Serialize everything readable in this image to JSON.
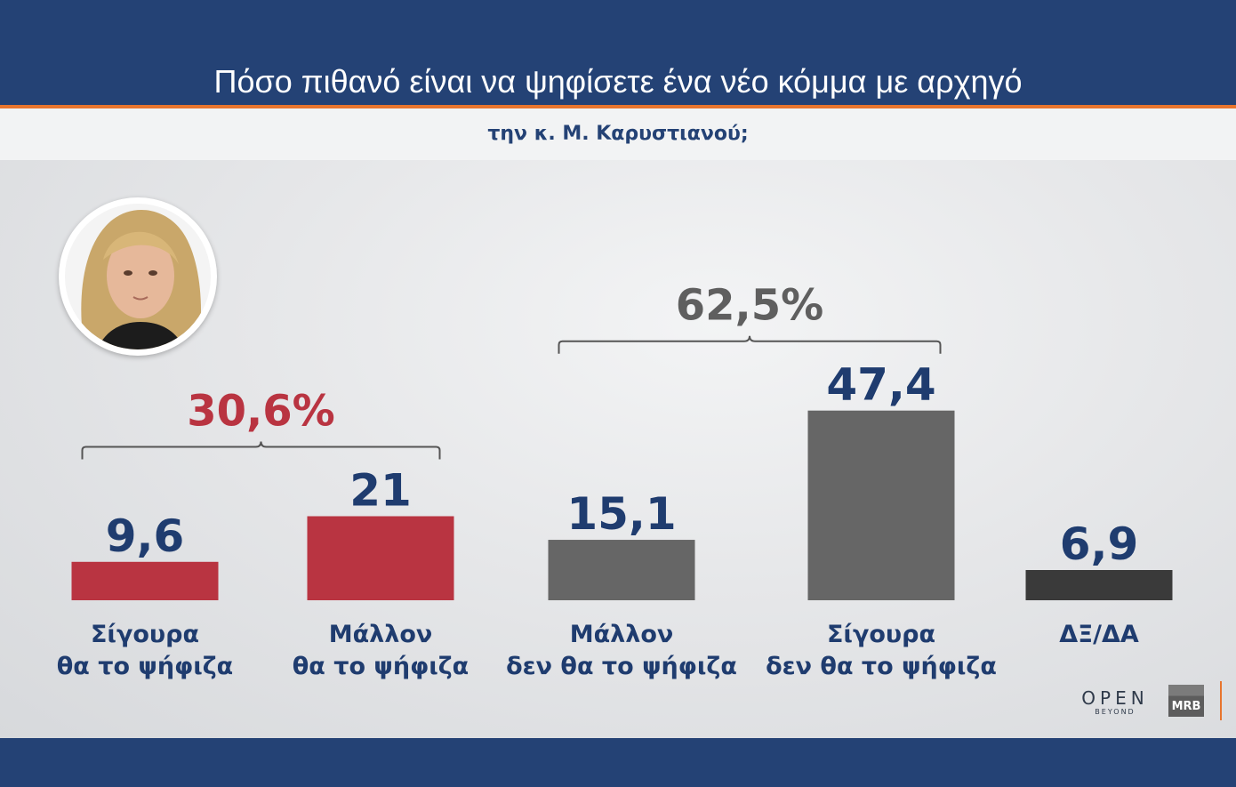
{
  "header": {
    "title": "Πόσο πιθανό είναι να ψηφίσετε ένα νέο κόμμα με αρχηγό",
    "subtitle": "την κ. Μ. Καρυστιανού;"
  },
  "colors": {
    "header_blue": "#244275",
    "accent_orange": "#e8752e",
    "red": "#b93441",
    "gray": "#666666",
    "dark": "#3a3a3a",
    "value_blue": "#1f3c6f",
    "total_gray": "#5f5f5f"
  },
  "chart_data": {
    "type": "bar",
    "title": "Πόσο πιθανό είναι να ψηφίσετε ένα νέο κόμμα με αρχηγό την κ. Μ. Καρυστιανού;",
    "categories": [
      [
        "Σίγουρα",
        "θα το ψήφιζα"
      ],
      [
        "Μάλλον",
        "θα το ψήφιζα"
      ],
      [
        "Μάλλον",
        "δεν θα το ψήφιζα"
      ],
      [
        "Σίγουρα",
        "δεν θα το ψήφιζα"
      ],
      [
        "ΔΞ/ΔΑ"
      ]
    ],
    "values": [
      9.6,
      21,
      15.1,
      47.4,
      6.9
    ],
    "value_labels": [
      "9,6",
      "21",
      "15,1",
      "47,4",
      "6,9"
    ],
    "bar_colors": [
      "#b93441",
      "#b93441",
      "#666666",
      "#666666",
      "#3a3a3a"
    ],
    "ylim": [
      0,
      50
    ],
    "grid": false,
    "groups": [
      {
        "label": "30,6%",
        "value": 30.6,
        "bars": [
          0,
          1
        ],
        "color": "#b93441"
      },
      {
        "label": "62,5%",
        "value": 62.5,
        "bars": [
          2,
          3
        ],
        "color": "#5f5f5f"
      }
    ]
  },
  "logos": {
    "open": "OPEN",
    "beyond": "BEYOND",
    "mrb": "MRB"
  },
  "icons": {
    "portrait": "portrait-photo"
  }
}
